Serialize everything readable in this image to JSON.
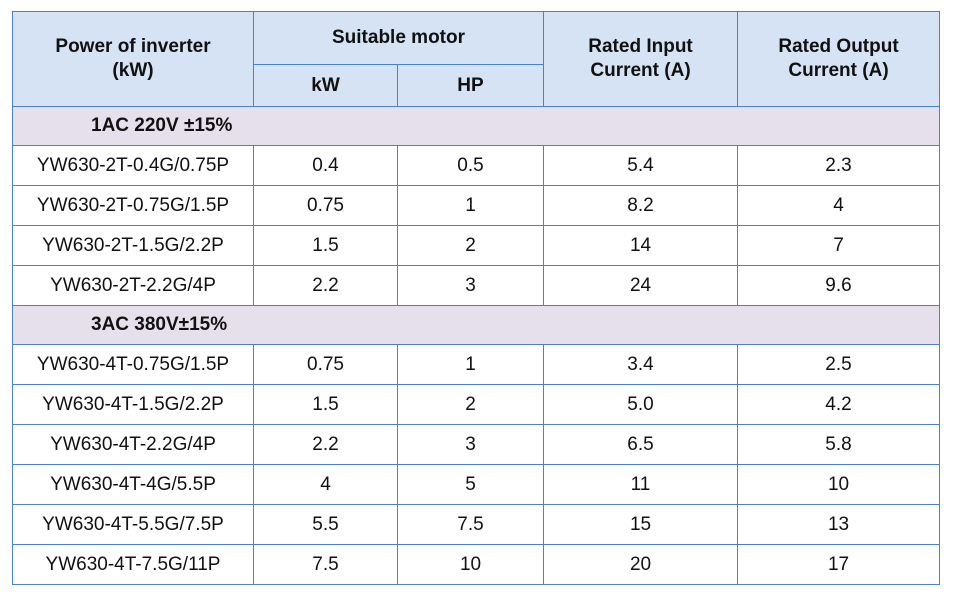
{
  "table": {
    "headers": {
      "power_line1": "Power of inverter",
      "power_line2": "(kW)",
      "suitable_motor": "Suitable motor",
      "kw": "kW",
      "hp": "HP",
      "input_line1": "Rated Input",
      "input_line2": "Current (A)",
      "output_line1": "Rated Output",
      "output_line2": "Current (A)"
    },
    "sections": [
      {
        "title": "1AC 220V ±15%",
        "rows": [
          {
            "model": "YW630-2T-0.4G/0.75P",
            "kw": "0.4",
            "hp": "0.5",
            "input": "5.4",
            "output": "2.3"
          },
          {
            "model": "YW630-2T-0.75G/1.5P",
            "kw": "0.75",
            "hp": "1",
            "input": "8.2",
            "output": "4"
          },
          {
            "model": "YW630-2T-1.5G/2.2P",
            "kw": "1.5",
            "hp": "2",
            "input": "14",
            "output": "7"
          },
          {
            "model": "YW630-2T-2.2G/4P",
            "kw": "2.2",
            "hp": "3",
            "input": "24",
            "output": "9.6"
          }
        ]
      },
      {
        "title": "3AC 380V±15%",
        "rows": [
          {
            "model": "YW630-4T-0.75G/1.5P",
            "kw": "0.75",
            "hp": "1",
            "input": "3.4",
            "output": "2.5"
          },
          {
            "model": "YW630-4T-1.5G/2.2P",
            "kw": "1.5",
            "hp": "2",
            "input": "5.0",
            "output": "4.2"
          },
          {
            "model": "YW630-4T-2.2G/4P",
            "kw": "2.2",
            "hp": "3",
            "input": "6.5",
            "output": "5.8"
          },
          {
            "model": "YW630-4T-4G/5.5P",
            "kw": "4",
            "hp": "5",
            "input": "11",
            "output": "10"
          },
          {
            "model": "YW630-4T-5.5G/7.5P",
            "kw": "5.5",
            "hp": "7.5",
            "input": "15",
            "output": "13"
          },
          {
            "model": "YW630-4T-7.5G/11P",
            "kw": "7.5",
            "hp": "10",
            "input": "20",
            "output": "17"
          }
        ]
      }
    ]
  }
}
